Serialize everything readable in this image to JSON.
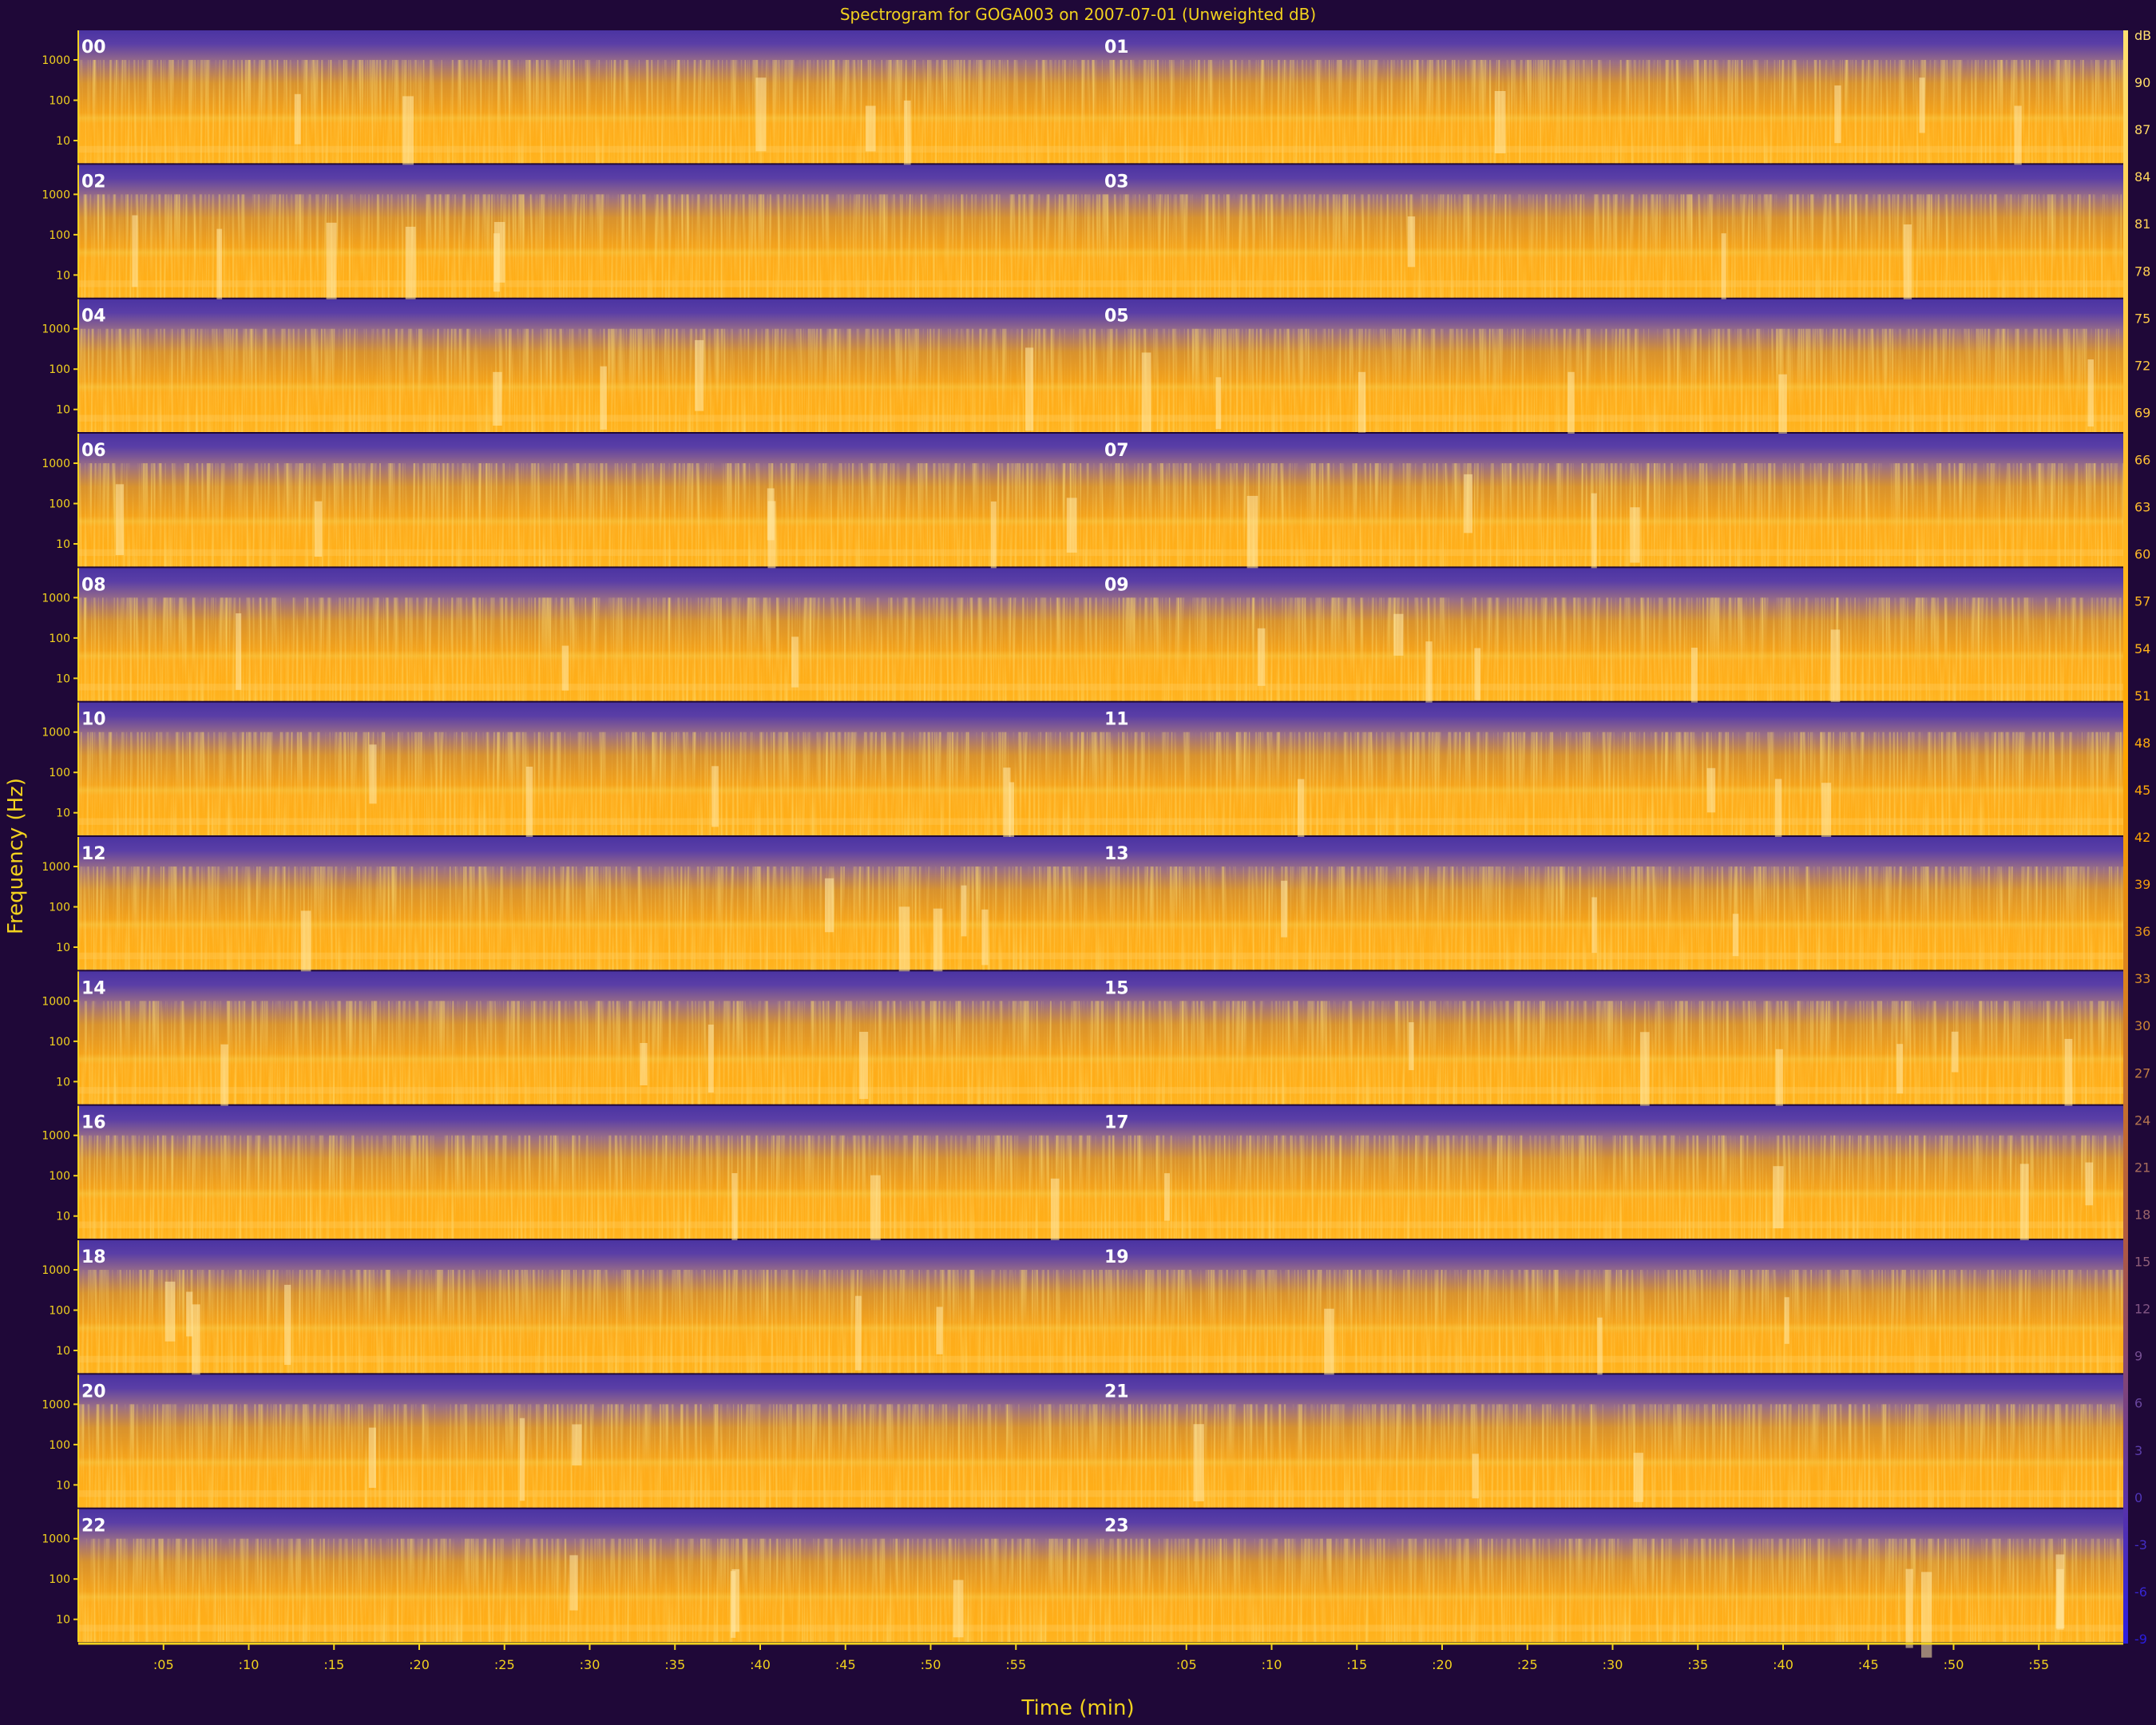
{
  "chart_data": {
    "type": "heatmap",
    "title": "Spectrogram for GOGA003 on 2007-07-01 (Unweighted dB)",
    "xlabel": "Time (min)",
    "ylabel": "Frequency (Hz)",
    "layout": "24 hourly spectrograms arranged in 12 rows by 2 columns",
    "hours": [
      "00",
      "01",
      "02",
      "03",
      "04",
      "05",
      "06",
      "07",
      "08",
      "09",
      "10",
      "11",
      "12",
      "13",
      "14",
      "15",
      "16",
      "17",
      "18",
      "19",
      "20",
      "21",
      "22",
      "23"
    ],
    "x_ticks": [
      ":05",
      ":10",
      ":15",
      ":20",
      ":25",
      ":30",
      ":35",
      ":40",
      ":45",
      ":50",
      ":55"
    ],
    "x_range_min": [
      0,
      60
    ],
    "y_ticks": [
      "1000",
      "100",
      "10"
    ],
    "y_scale": "log",
    "colorbar": {
      "unit": "dB",
      "labels": [
        "dB",
        "90",
        "87",
        "84",
        "81",
        "78",
        "75",
        "72",
        "69",
        "66",
        "63",
        "60",
        "57",
        "54",
        "51",
        "48",
        "45",
        "42",
        "39",
        "36",
        "33",
        "30",
        "27",
        "24",
        "21",
        "18",
        "15",
        "12",
        "9",
        "6",
        "3",
        "0",
        "-3",
        "-6",
        "-9"
      ],
      "range": [
        -9,
        93
      ],
      "low_color": "#2a1ee0",
      "mid_color": "#ffa500",
      "high_color": "#ffe070"
    },
    "colors": {
      "background": "#1f0838",
      "text": "#f2d21e",
      "axis": "#f2d21e",
      "hour_label": "#ffffff",
      "spectrogram_top": "#5d3ea8",
      "spectrogram_body": "#f7a41c",
      "spectrogram_band": "#ffb01a"
    }
  }
}
